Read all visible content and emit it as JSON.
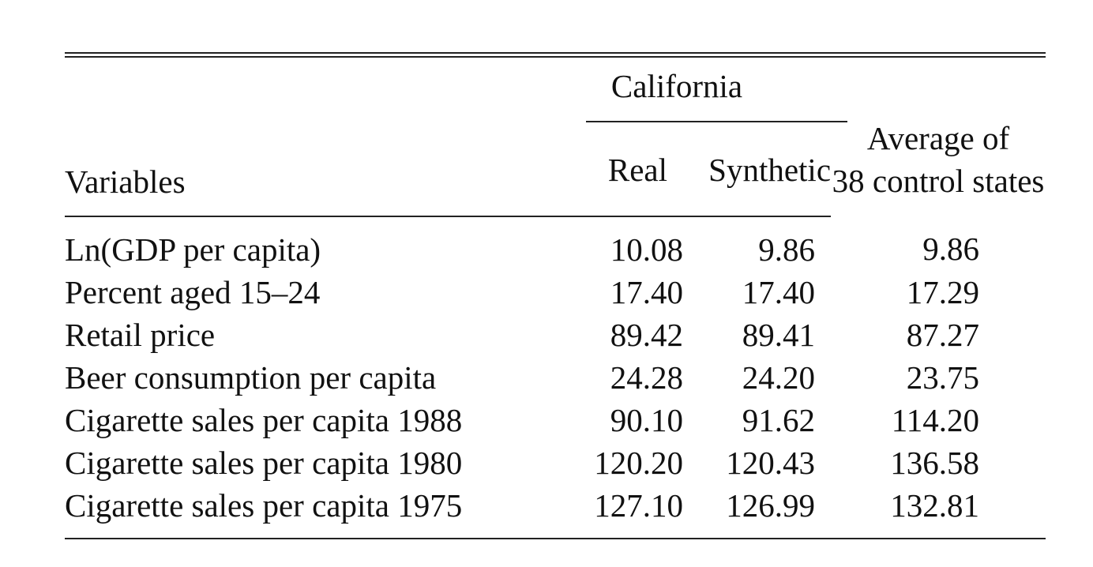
{
  "table": {
    "header": {
      "variables": "Variables",
      "group_label": "California",
      "real": "Real",
      "synthetic": "Synthetic",
      "average_line1": "Average of",
      "average_line2": "38 control states"
    },
    "rows": [
      {
        "variable": "Ln(GDP per capita)",
        "real": "10.08",
        "synthetic": "9.86",
        "average": "9.86"
      },
      {
        "variable": "Percent aged 15–24",
        "real": "17.40",
        "synthetic": "17.40",
        "average": "17.29"
      },
      {
        "variable": "Retail price",
        "real": "89.42",
        "synthetic": "89.41",
        "average": "87.27"
      },
      {
        "variable": "Beer consumption per capita",
        "real": "24.28",
        "synthetic": "24.20",
        "average": "23.75"
      },
      {
        "variable": "Cigarette sales per capita 1988",
        "real": "90.10",
        "synthetic": "91.62",
        "average": "114.20"
      },
      {
        "variable": "Cigarette sales per capita 1980",
        "real": "120.20",
        "synthetic": "120.43",
        "average": "136.58"
      },
      {
        "variable": "Cigarette sales per capita 1975",
        "real": "127.10",
        "synthetic": "126.99",
        "average": "132.81"
      }
    ]
  }
}
